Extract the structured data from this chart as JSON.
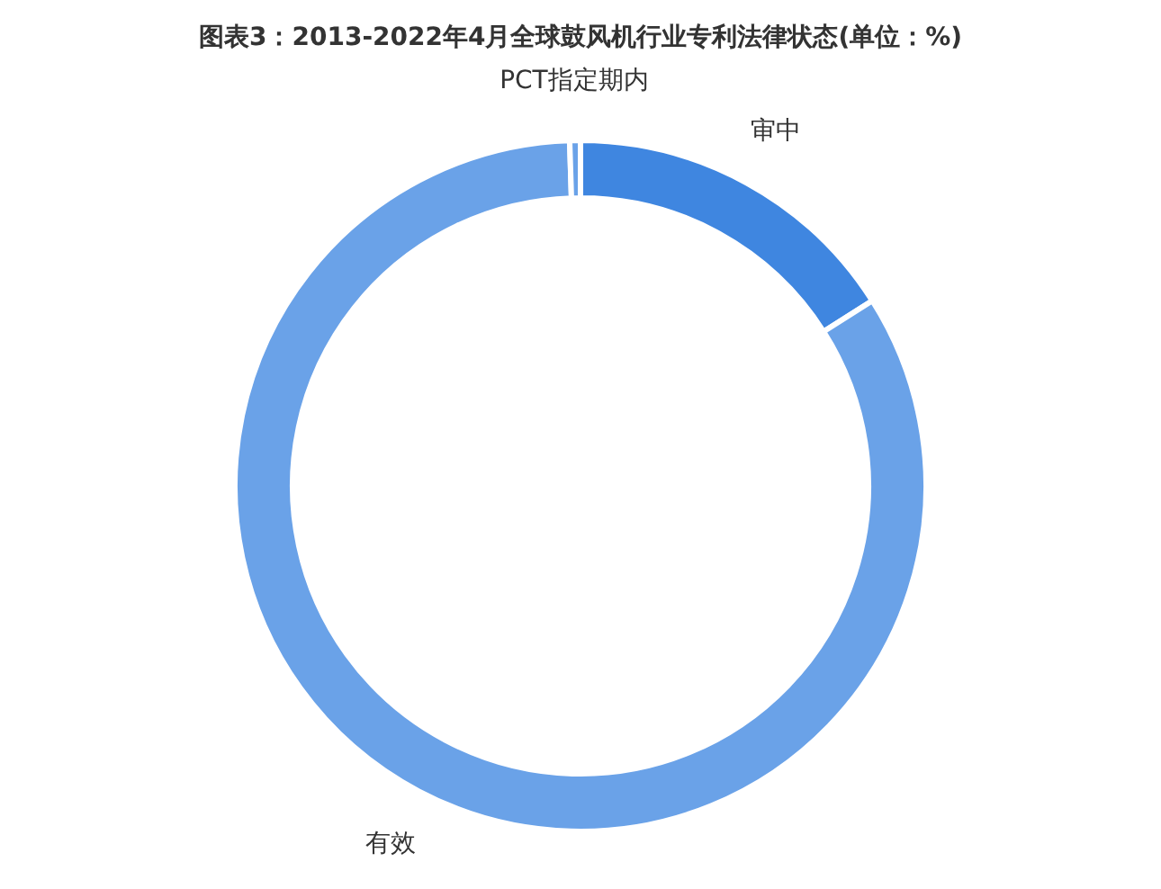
{
  "chart_data": {
    "type": "donut",
    "title": "图表3：2013-2022年4月全球鼓风机行业专利法律状态(单位：%)",
    "categories": [
      "审中",
      "有效",
      "PCT指定期内"
    ],
    "values": [
      16,
      83.5,
      0.5
    ],
    "colors": [
      "#3f86e0",
      "#6aa2e8",
      "#6aa2e8"
    ]
  }
}
